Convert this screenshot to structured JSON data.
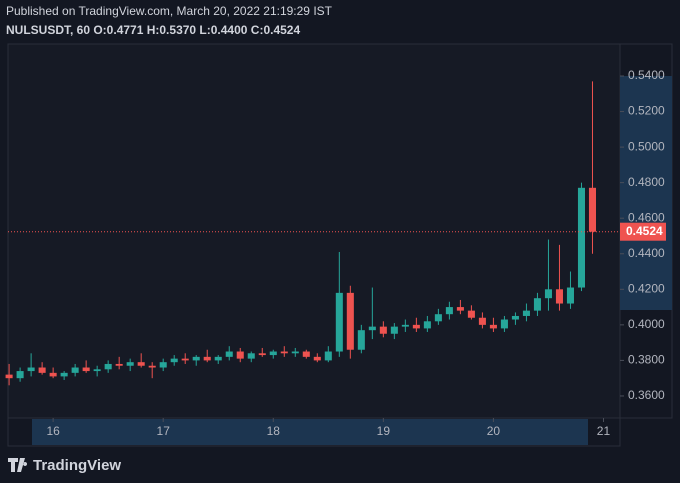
{
  "published": "Published on TradingView.com, March 20, 2022 21:19:29 IST",
  "legend": "NULSUSDT, 60 O:0.4771 H:0.5370 L:0.4400 C:0.4524",
  "brand": "TradingView",
  "chart_data": {
    "type": "candlestick",
    "up_color": "#26a69a",
    "down_color": "#ef5350",
    "x": [
      15.6,
      15.7,
      15.8,
      15.9,
      16.0,
      16.1,
      16.2,
      16.3,
      16.4,
      16.5,
      16.6,
      16.7,
      16.8,
      16.9,
      17.0,
      17.1,
      17.2,
      17.3,
      17.4,
      17.5,
      17.6,
      17.7,
      17.8,
      17.9,
      18.0,
      18.1,
      18.2,
      18.3,
      18.4,
      18.5,
      18.6,
      18.7,
      18.8,
      18.9,
      19.0,
      19.1,
      19.2,
      19.3,
      19.4,
      19.5,
      19.6,
      19.7,
      19.8,
      19.9,
      20.0,
      20.1,
      20.2,
      20.3,
      20.4,
      20.5,
      20.6,
      20.7,
      20.8,
      20.9
    ],
    "open": [
      0.372,
      0.37,
      0.374,
      0.376,
      0.373,
      0.371,
      0.373,
      0.376,
      0.374,
      0.375,
      0.378,
      0.377,
      0.379,
      0.377,
      0.376,
      0.379,
      0.381,
      0.38,
      0.382,
      0.38,
      0.382,
      0.385,
      0.381,
      0.384,
      0.383,
      0.385,
      0.384,
      0.385,
      0.382,
      0.38,
      0.385,
      0.418,
      0.386,
      0.397,
      0.399,
      0.395,
      0.399,
      0.4,
      0.398,
      0.402,
      0.406,
      0.41,
      0.408,
      0.404,
      0.4,
      0.398,
      0.403,
      0.405,
      0.408,
      0.415,
      0.42,
      0.412,
      0.421,
      0.4771
    ],
    "high": [
      0.378,
      0.376,
      0.384,
      0.379,
      0.376,
      0.374,
      0.378,
      0.38,
      0.377,
      0.38,
      0.382,
      0.381,
      0.384,
      0.379,
      0.381,
      0.383,
      0.384,
      0.383,
      0.386,
      0.383,
      0.388,
      0.387,
      0.385,
      0.387,
      0.386,
      0.388,
      0.387,
      0.386,
      0.384,
      0.388,
      0.441,
      0.422,
      0.4,
      0.421,
      0.402,
      0.401,
      0.403,
      0.404,
      0.405,
      0.409,
      0.413,
      0.414,
      0.411,
      0.407,
      0.404,
      0.405,
      0.407,
      0.412,
      0.418,
      0.448,
      0.445,
      0.43,
      0.48,
      0.537
    ],
    "low": [
      0.366,
      0.368,
      0.371,
      0.372,
      0.37,
      0.369,
      0.371,
      0.373,
      0.371,
      0.373,
      0.375,
      0.374,
      0.376,
      0.37,
      0.374,
      0.377,
      0.378,
      0.377,
      0.379,
      0.378,
      0.38,
      0.379,
      0.379,
      0.382,
      0.381,
      0.382,
      0.382,
      0.381,
      0.379,
      0.379,
      0.382,
      0.381,
      0.384,
      0.392,
      0.393,
      0.392,
      0.396,
      0.396,
      0.396,
      0.4,
      0.403,
      0.406,
      0.403,
      0.398,
      0.396,
      0.396,
      0.4,
      0.402,
      0.405,
      0.408,
      0.408,
      0.409,
      0.419,
      0.44
    ],
    "close": [
      0.37,
      0.374,
      0.376,
      0.373,
      0.371,
      0.373,
      0.376,
      0.374,
      0.375,
      0.378,
      0.377,
      0.379,
      0.377,
      0.376,
      0.379,
      0.381,
      0.38,
      0.382,
      0.38,
      0.382,
      0.385,
      0.381,
      0.384,
      0.383,
      0.385,
      0.384,
      0.385,
      0.382,
      0.38,
      0.385,
      0.418,
      0.386,
      0.397,
      0.399,
      0.395,
      0.399,
      0.4,
      0.398,
      0.402,
      0.406,
      0.41,
      0.408,
      0.404,
      0.4,
      0.398,
      0.403,
      0.405,
      0.408,
      0.415,
      0.42,
      0.412,
      0.421,
      0.4771,
      0.4524
    ],
    "xlim": [
      15.59,
      21.15
    ],
    "xticks": [
      16,
      17,
      18,
      19,
      20,
      21
    ],
    "ylim": [
      0.3476,
      0.558
    ],
    "yticks": [
      {
        "value": 0.36,
        "label": "0.3600"
      },
      {
        "value": 0.38,
        "label": "0.3800"
      },
      {
        "value": 0.4,
        "label": "0.4000"
      },
      {
        "value": 0.42,
        "label": "0.4200"
      },
      {
        "value": 0.44,
        "label": "0.4400"
      },
      {
        "value": 0.46,
        "label": "0.4600"
      },
      {
        "value": 0.48,
        "label": "0.4800"
      },
      {
        "value": 0.5,
        "label": "0.5000"
      },
      {
        "value": 0.52,
        "label": "0.5200"
      },
      {
        "value": 0.54,
        "label": "0.5400"
      }
    ],
    "last_price": {
      "value": 0.4524,
      "label": "0.4524"
    },
    "grid": false
  }
}
